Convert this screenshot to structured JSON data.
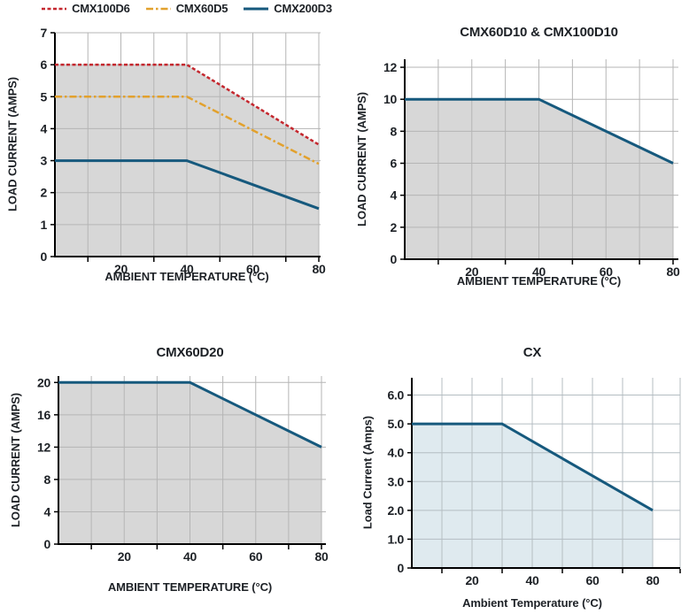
{
  "palette": {
    "red": "#c4272e",
    "orange": "#e2a12d",
    "blue": "#16597d",
    "gray_fill": "#d7d7d7",
    "light_blue_fill": "#dfeaef",
    "grid_gray": "#b5b5b5",
    "grid_blue_gray": "#b4bdc2",
    "axis": "#000000",
    "text": "#1d2126"
  },
  "legend": {
    "items": [
      {
        "label": "CMX100D6",
        "color": "#c4272e",
        "dash": "4 2.5",
        "width": 2.5
      },
      {
        "label": "CMX60D5",
        "color": "#e2a12d",
        "dash": "8 3 2.5 3",
        "width": 2.5
      },
      {
        "label": "CMX200D3",
        "color": "#16597d",
        "dash": "",
        "width": 3
      }
    ]
  },
  "chart_data": [
    {
      "type": "line",
      "title": "",
      "xlabel": "AMBIENT TEMPERATURE (°C)",
      "ylabel": "LOAD CURRENT (AMPS)",
      "xlim": [
        0,
        80
      ],
      "ylim": [
        0,
        7
      ],
      "x_tick_labels": [
        "20",
        "40",
        "60",
        "80"
      ],
      "x_tick_values": [
        20,
        40,
        60,
        80
      ],
      "x_minor_ticks": [
        10,
        30,
        50,
        70,
        80
      ],
      "grid_x": [
        10,
        20,
        30,
        40,
        50,
        60,
        70,
        80
      ],
      "y_ticks": [
        0,
        1,
        2,
        3,
        4,
        5,
        6,
        7
      ],
      "y_tick_labels": [
        "0",
        "1",
        "2",
        "3",
        "4",
        "5",
        "6",
        "7"
      ],
      "grid_color": "#b5b5b5",
      "legend_position": "top",
      "fill": {
        "under_series": "CMX100D6",
        "color": "#d7d7d7"
      },
      "series": [
        {
          "name": "CMX100D6",
          "color": "#c4272e",
          "dash": "4 2.5",
          "width": 2.5,
          "x": [
            0,
            40,
            80
          ],
          "y": [
            6,
            6,
            3.5
          ]
        },
        {
          "name": "CMX60D5",
          "color": "#e2a12d",
          "dash": "8 3 2.5 3",
          "width": 2.5,
          "x": [
            0,
            40,
            80
          ],
          "y": [
            5,
            5,
            2.9
          ]
        },
        {
          "name": "CMX200D3",
          "color": "#16597d",
          "dash": "",
          "width": 3,
          "x": [
            0,
            40,
            80
          ],
          "y": [
            3,
            3,
            1.5
          ]
        }
      ]
    },
    {
      "type": "line",
      "title": "CMX60D10 & CMX100D10",
      "xlabel": "AMBIENT TEMPERATURE (°C)",
      "ylabel": "LOAD CURRENT (AMPS)",
      "xlim": [
        0,
        80
      ],
      "ylim": [
        0,
        12.5
      ],
      "x_tick_labels": [
        "20",
        "40",
        "60",
        "80"
      ],
      "x_tick_values": [
        20,
        40,
        60,
        80
      ],
      "x_minor_ticks": [
        10,
        30,
        50,
        70,
        80
      ],
      "grid_x": [
        10,
        20,
        30,
        40,
        50,
        60,
        70,
        80
      ],
      "y_ticks": [
        0,
        2,
        4,
        6,
        8,
        10,
        12
      ],
      "y_tick_labels": [
        "0",
        "2",
        "4",
        "6",
        "8",
        "10",
        "12"
      ],
      "grid_color": "#b5b5b5",
      "fill": {
        "under_series": "CMX60D10 & CMX100D10",
        "color": "#d7d7d7"
      },
      "series": [
        {
          "name": "CMX60D10 & CMX100D10",
          "color": "#16597d",
          "dash": "",
          "width": 3,
          "x": [
            0,
            40,
            80
          ],
          "y": [
            10,
            10,
            6
          ]
        }
      ]
    },
    {
      "type": "line",
      "title": "CMX60D20",
      "xlabel": "AMBIENT TEMPERATURE (°C)",
      "ylabel": "LOAD CURRENT (AMPS)",
      "xlim": [
        0,
        80
      ],
      "ylim": [
        0,
        20.8
      ],
      "x_tick_labels": [
        "20",
        "40",
        "60",
        "80"
      ],
      "x_tick_values": [
        20,
        40,
        60,
        80
      ],
      "x_minor_ticks": [
        10,
        30,
        50,
        70,
        80
      ],
      "grid_x": [
        10,
        20,
        30,
        40,
        50,
        60,
        70,
        80
      ],
      "y_ticks": [
        0,
        4,
        8,
        12,
        16,
        20
      ],
      "y_tick_labels": [
        "0",
        "4",
        "8",
        "12",
        "16",
        "20"
      ],
      "grid_color": "#b5b5b5",
      "fill": {
        "under_series": "CMX60D20",
        "color": "#d7d7d7"
      },
      "series": [
        {
          "name": "CMX60D20",
          "color": "#16597d",
          "dash": "",
          "width": 3,
          "x": [
            0,
            40,
            80
          ],
          "y": [
            20,
            20,
            12
          ]
        }
      ]
    },
    {
      "type": "line",
      "title": "CX",
      "xlabel": "Ambient Temperature (°C)",
      "ylabel": "Load Current (Amps)",
      "xlim": [
        0,
        80
      ],
      "ylim": [
        0,
        6.6
      ],
      "x_tick_labels": [
        "20",
        "40",
        "60",
        "80"
      ],
      "x_tick_values": [
        20,
        40,
        60,
        80
      ],
      "x_minor_ticks": [
        10,
        30,
        50,
        70
      ],
      "grid_x": [
        10,
        20,
        30,
        40,
        50,
        60,
        70,
        80
      ],
      "y_ticks": [
        0,
        1,
        2,
        3,
        4,
        5,
        6
      ],
      "y_tick_labels": [
        "0",
        "1.0",
        "2.0",
        "3.0",
        "4.0",
        "5.0",
        "6.0"
      ],
      "grid_color": "#b4bdc2",
      "edge_grid": true,
      "end_tick": true,
      "fill": {
        "under_series": "CX",
        "color": "#dfeaef"
      },
      "series": [
        {
          "name": "CX",
          "color": "#16597d",
          "dash": "",
          "width": 3,
          "x": [
            0,
            30,
            80
          ],
          "y": [
            5,
            5,
            2
          ]
        }
      ]
    }
  ]
}
